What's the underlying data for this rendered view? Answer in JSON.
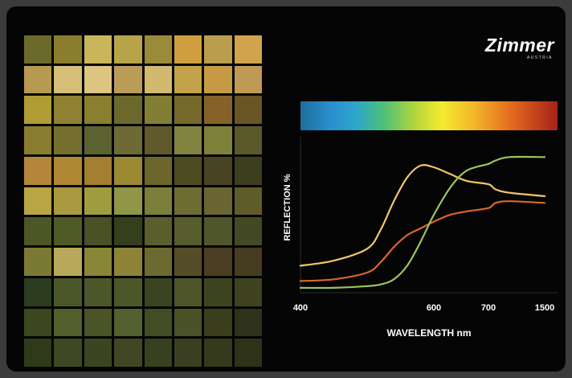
{
  "brand": {
    "name": "Zimmer",
    "sub": "AUSTRIA"
  },
  "swatches": [
    "#6b6a2a",
    "#8a7e2e",
    "#c9b65b",
    "#b7a448",
    "#9a8b3b",
    "#cf9f3f",
    "#bb9d4e",
    "#d1a34c",
    "#b69a4f",
    "#d4be78",
    "#dcc681",
    "#b99c56",
    "#d1b970",
    "#c3a24b",
    "#c69a45",
    "#bf9a55",
    "#b09c35",
    "#8f8133",
    "#8a7f31",
    "#6b682b",
    "#837e35",
    "#76692c",
    "#866228",
    "#6a5527",
    "#8a7d2f",
    "#767030",
    "#5c6130",
    "#6e6a35",
    "#605a2a",
    "#808440",
    "#7e813a",
    "#59592a",
    "#b5853a",
    "#b08833",
    "#a37f2f",
    "#9c8a32",
    "#6c662d",
    "#4c4c23",
    "#464421",
    "#3c3e1e",
    "#b8a644",
    "#a99a3f",
    "#9f9c40",
    "#8f9647",
    "#7a7f3a",
    "#6d6d33",
    "#6a6530",
    "#5f5c2a",
    "#4c5626",
    "#4e5b27",
    "#4a5126",
    "#343f1c",
    "#5a5e2c",
    "#565c2b",
    "#4f5629",
    "#434a23",
    "#7a7a34",
    "#b8a95a",
    "#888637",
    "#8e8236",
    "#6c6a30",
    "#544d27",
    "#4c3e22",
    "#463c22",
    "#2c3c1f",
    "#4a5628",
    "#4d5628",
    "#4c5729",
    "#3a4420",
    "#4d5428",
    "#3c4420",
    "#3e421f",
    "#3c471f",
    "#525e2c",
    "#4b5426",
    "#536030",
    "#434d24",
    "#4a5328",
    "#3a3e1c",
    "#2e321a",
    "#2f3a1a",
    "#3f4822",
    "#3c4521",
    "#404723",
    "#37401f",
    "#3a401f",
    "#353a1c",
    "#2e3219"
  ],
  "chart_data": {
    "type": "line",
    "xlabel": "WAVELENGTH nm",
    "ylabel": "REFLECTION %",
    "x_ticks": [
      "400",
      "600",
      "700",
      "1500"
    ],
    "spectrum_bar": true,
    "colors": {
      "yellow": "#f2c66c",
      "orange": "#d9652f",
      "green": "#9cc45e"
    },
    "series": [
      {
        "color": "yellow",
        "x": [
          400,
          450,
          500,
          520,
          540,
          560,
          580,
          600,
          630,
          660,
          700,
          800,
          1000,
          1500
        ],
        "y": [
          14,
          17,
          24,
          35,
          52,
          66,
          73,
          72,
          68,
          64,
          62,
          59,
          57,
          55
        ]
      },
      {
        "color": "orange",
        "x": [
          400,
          450,
          500,
          520,
          540,
          560,
          580,
          600,
          630,
          660,
          700,
          800,
          1000,
          1500
        ],
        "y": [
          5,
          6,
          10,
          16,
          25,
          32,
          36,
          40,
          44,
          46,
          48,
          51,
          52,
          51
        ]
      },
      {
        "color": "green",
        "x": [
          400,
          450,
          500,
          520,
          540,
          560,
          580,
          600,
          630,
          660,
          700,
          800,
          1000,
          1500
        ],
        "y": [
          1,
          1,
          2,
          3,
          6,
          14,
          28,
          44,
          60,
          70,
          74,
          76,
          78,
          78
        ]
      }
    ],
    "ylim": [
      0,
      90
    ]
  }
}
